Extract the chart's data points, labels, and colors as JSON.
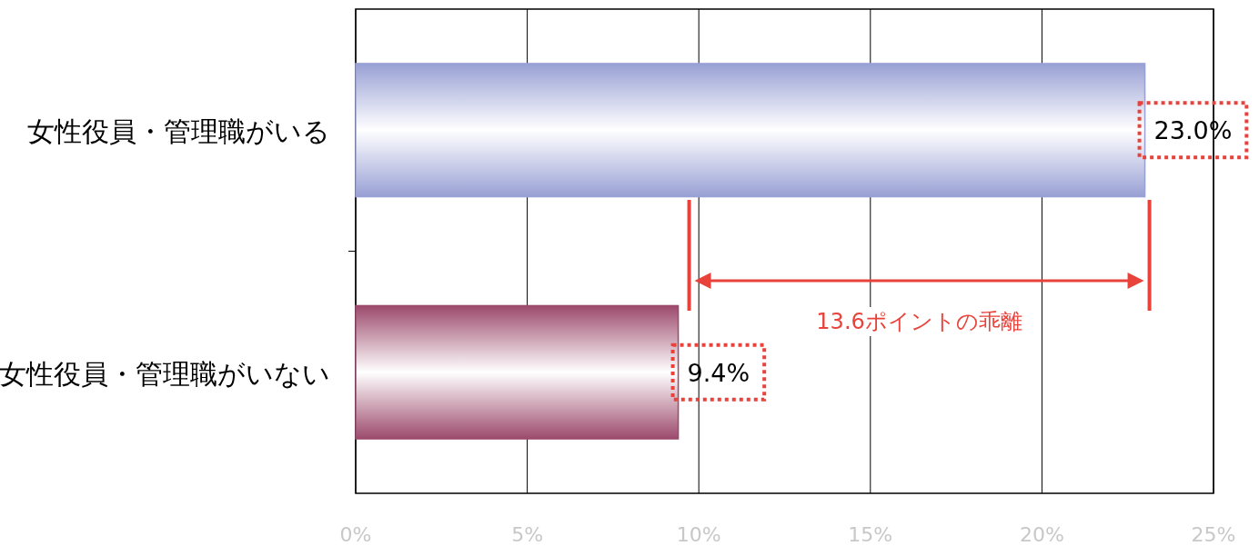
{
  "chart_data": {
    "type": "bar",
    "orientation": "horizontal",
    "categories": [
      "女性役員・管理職がいる",
      "女性役員・管理職がいない"
    ],
    "values": [
      23.0,
      9.4
    ],
    "colors": [
      "#98a0d4",
      "#9c4a6c"
    ],
    "value_labels": [
      "23.0%",
      "9.4%"
    ],
    "xlim": [
      0,
      25
    ],
    "xticks": [
      {
        "value": 0,
        "label": "0%"
      },
      {
        "value": 5,
        "label": "5%"
      },
      {
        "value": 10,
        "label": "10%"
      },
      {
        "value": 15,
        "label": "15%"
      },
      {
        "value": 20,
        "label": "20%"
      },
      {
        "value": 25,
        "label": "25%"
      }
    ],
    "grid": "x",
    "legend": false,
    "annotations": [
      "13.6ポイントの乖離"
    ]
  }
}
